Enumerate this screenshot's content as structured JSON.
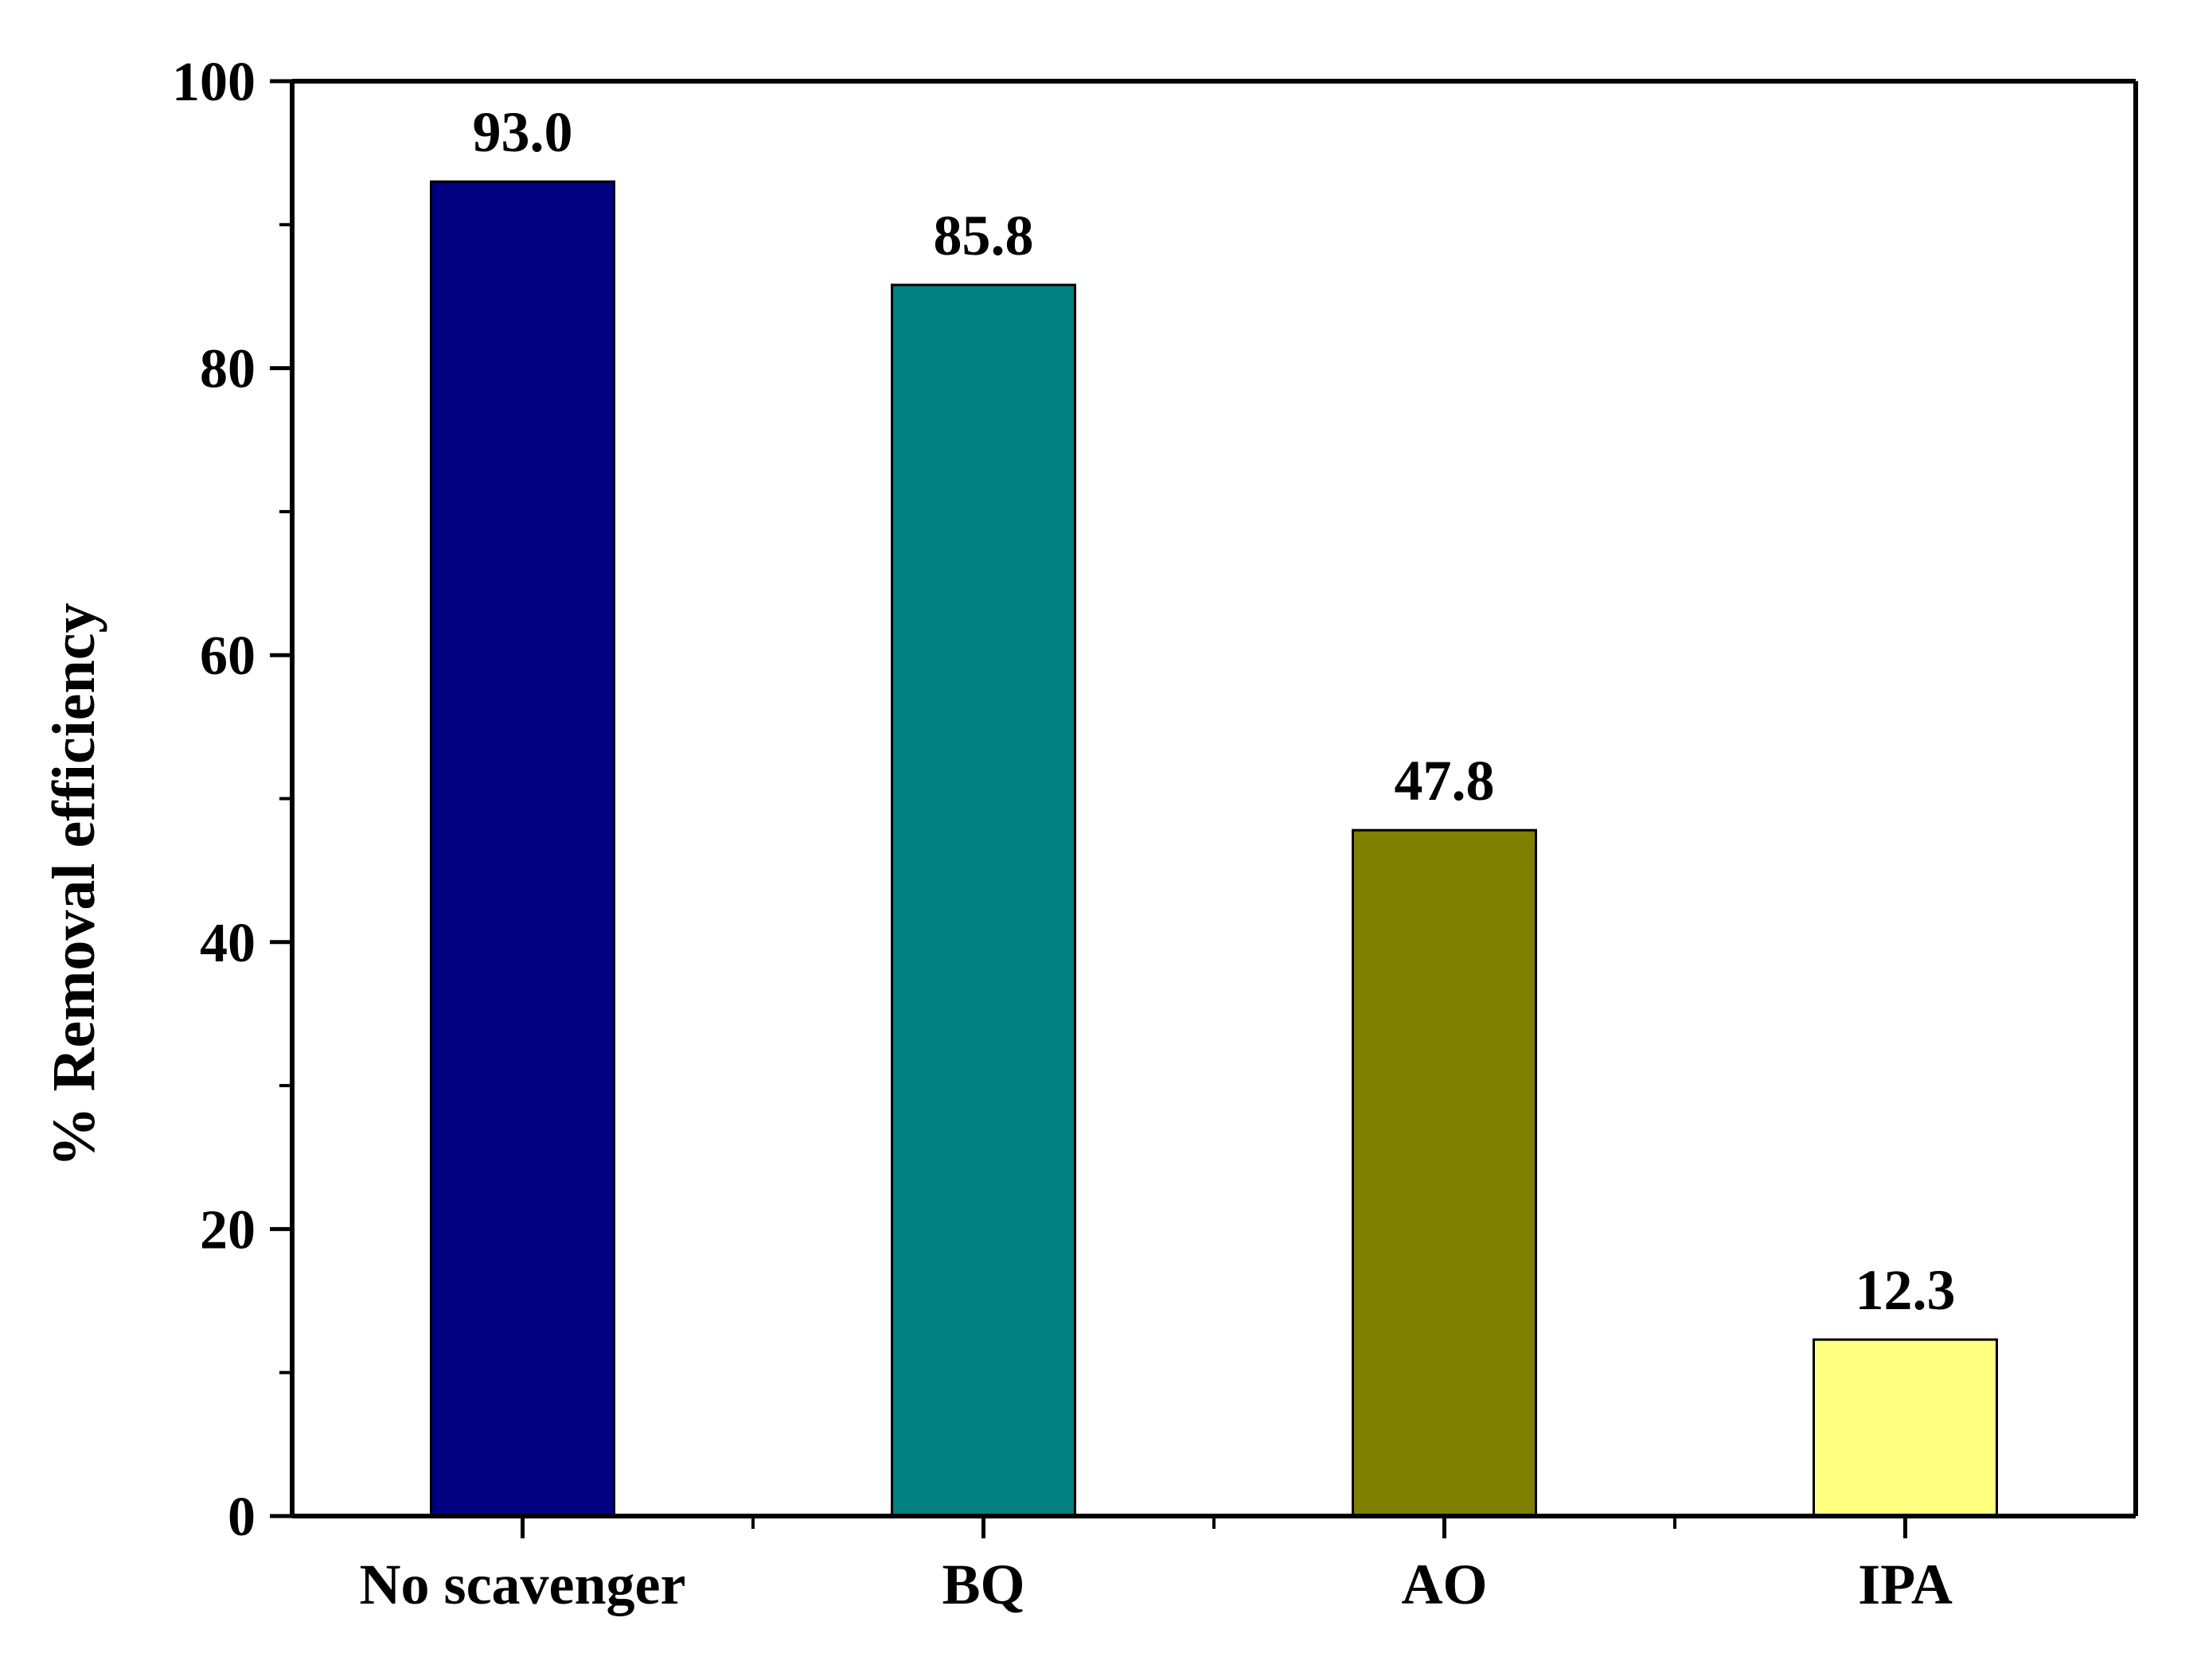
{
  "chart_data": {
    "type": "bar",
    "title": "",
    "xlabel": "",
    "ylabel": "% Removal efficiency",
    "ylim": [
      0,
      100
    ],
    "yticks": [
      0,
      20,
      40,
      60,
      80,
      100
    ],
    "categories": [
      "No scavenger",
      "BQ",
      "AO",
      "IPA"
    ],
    "values": [
      93.0,
      85.8,
      47.8,
      12.3
    ],
    "value_labels": [
      "93.0",
      "85.8",
      "47.8",
      "12.3"
    ],
    "colors": [
      "#000080",
      "#008080",
      "#808000",
      "#ffff80"
    ],
    "grid": false,
    "legend": "none"
  }
}
